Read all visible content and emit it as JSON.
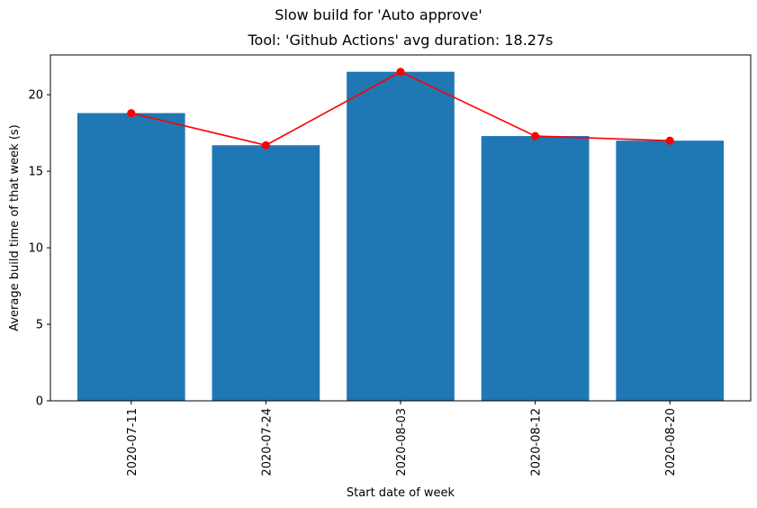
{
  "suptitle": "Slow build for 'Auto approve'",
  "chart_data": {
    "type": "bar",
    "title": "Tool: 'Github Actions' avg duration: 18.27s",
    "xlabel": "Start date of week",
    "ylabel": "Average build time of that week (s)",
    "categories": [
      "2020-07-11",
      "2020-07-24",
      "2020-08-03",
      "2020-08-12",
      "2020-08-20"
    ],
    "values": [
      18.8,
      16.7,
      21.5,
      17.3,
      17.0
    ],
    "line_values": [
      18.8,
      16.7,
      21.5,
      17.3,
      17.0
    ],
    "ylim": [
      0,
      22.6
    ],
    "yticks": [
      0,
      5,
      10,
      15,
      20
    ],
    "bar_color": "#1f77b4",
    "line_color": "#ff0000",
    "grid": false,
    "legend": "none"
  }
}
